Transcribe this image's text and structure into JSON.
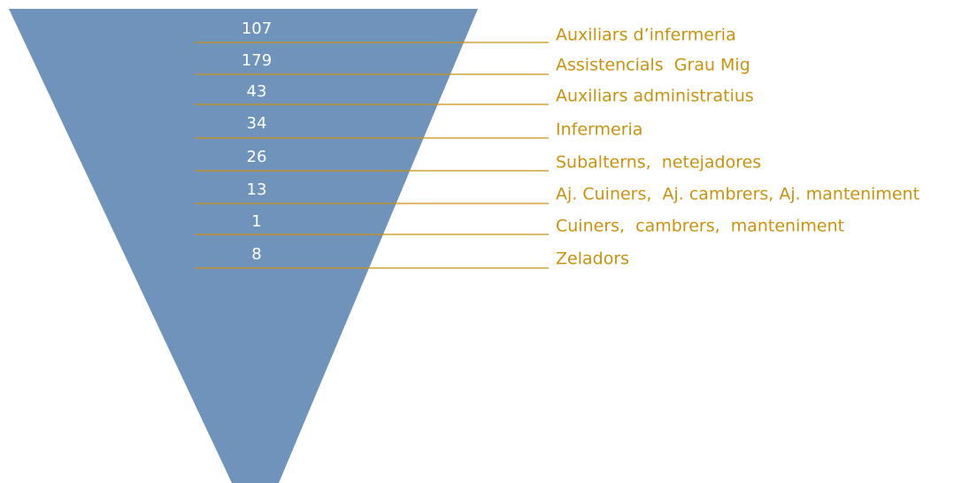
{
  "items": [
    {
      "value": 107,
      "label": "Auxiliars d’infermeria"
    },
    {
      "value": 179,
      "label": "Assistencials  Grau Mig"
    },
    {
      "value": 43,
      "label": "Auxiliars administratius"
    },
    {
      "value": 34,
      "label": "Infermeria"
    },
    {
      "value": 26,
      "label": "Subalterns,  netejadores"
    },
    {
      "value": 13,
      "label": "Aj. Cuiners,  Aj. cambrers, Aj. manteniment"
    },
    {
      "value": 1,
      "label": "Cuiners,  cambrers,  manteniment"
    },
    {
      "value": 8,
      "label": "Zeladors"
    }
  ]
}
